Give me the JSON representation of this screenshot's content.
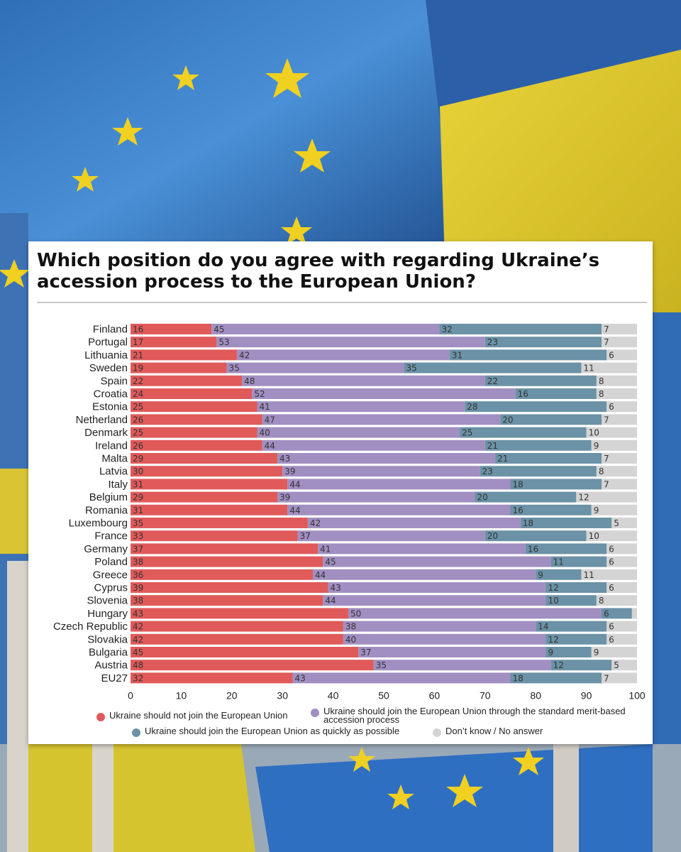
{
  "chart_data": {
    "type": "bar",
    "stacked": true,
    "orientation": "horizontal",
    "title": "Which position do you agree with regarding Ukraine’s accession process to the European Union?",
    "categories": [
      "Finland",
      "Portugal",
      "Lithuania",
      "Sweden",
      "Spain",
      "Croatia",
      "Estonia",
      "Netherland",
      "Denmark",
      "Ireland",
      "Malta",
      "Latvia",
      "Italy",
      "Belgium",
      "Romania",
      "Luxembourg",
      "France",
      "Germany",
      "Poland",
      "Greece",
      "Cyprus",
      "Slovenia",
      "Hungary",
      "Czech Republic",
      "Slovakia",
      "Bulgaria",
      "Austria",
      "EU27"
    ],
    "series": [
      {
        "name": "Ukraine should not join the European Union",
        "color": "#e05a5a",
        "values": [
          16,
          17,
          21,
          19,
          22,
          24,
          25,
          26,
          25,
          26,
          29,
          30,
          31,
          29,
          31,
          35,
          33,
          37,
          38,
          36,
          39,
          38,
          43,
          42,
          42,
          45,
          48,
          32
        ]
      },
      {
        "name": "Ukraine should join the European Union through the standard merit-based accession process",
        "color": "#a18fc2",
        "values": [
          45,
          53,
          42,
          35,
          48,
          52,
          41,
          47,
          40,
          44,
          43,
          39,
          44,
          39,
          44,
          42,
          37,
          41,
          45,
          44,
          43,
          44,
          50,
          38,
          40,
          37,
          35,
          43
        ]
      },
      {
        "name": "Ukraine should join the European Union as quickly as possible",
        "color": "#6b92a6",
        "values": [
          32,
          23,
          31,
          35,
          22,
          16,
          28,
          20,
          25,
          21,
          21,
          23,
          18,
          20,
          16,
          18,
          20,
          16,
          11,
          9,
          12,
          10,
          6,
          14,
          12,
          9,
          12,
          18
        ]
      },
      {
        "name": "Don’t know / No answer",
        "color": "#d4d4d4",
        "values": [
          7,
          7,
          6,
          11,
          8,
          8,
          6,
          7,
          10,
          9,
          7,
          8,
          7,
          12,
          9,
          5,
          10,
          6,
          6,
          11,
          6,
          8,
          "",
          6,
          6,
          9,
          5,
          7
        ]
      }
    ],
    "xlim": [
      0,
      100
    ],
    "xticks": [
      0,
      10,
      20,
      30,
      40,
      50,
      60,
      70,
      80,
      90,
      100
    ],
    "legend_position": "bottom",
    "grid": false
  },
  "legend": {
    "items": [
      {
        "label": "Ukraine should not join the European Union",
        "color": "#e05a5a"
      },
      {
        "label": "Ukraine should join the European Union through the standard merit-based accession process",
        "color": "#a18fc2"
      },
      {
        "label": "Ukraine should join the European Union as quickly as possible",
        "color": "#6b92a6"
      },
      {
        "label": "Don’t know / No answer",
        "color": "#d4d4d4"
      }
    ]
  }
}
